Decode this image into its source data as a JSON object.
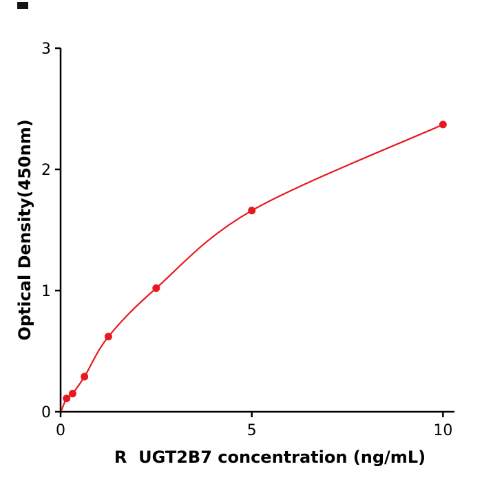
{
  "chart_data": {
    "type": "line",
    "title": "",
    "xlabel": "R  UGT2B7 concentration (ng/mL)",
    "ylabel": "Optical Density(450nm)",
    "x": [
      0.156,
      0.313,
      0.625,
      1.25,
      2.5,
      5,
      10
    ],
    "y": [
      0.11,
      0.15,
      0.29,
      0.62,
      1.02,
      1.66,
      2.37
    ],
    "curve_start": {
      "x": 0.02,
      "y": 0.01
    },
    "xticks": [
      0,
      5,
      10
    ],
    "yticks": [
      0,
      1,
      2,
      3
    ],
    "xlim": [
      0,
      10.3
    ],
    "ylim": [
      0,
      3
    ],
    "line_color": "#e8191d",
    "marker_color": "#e8191d",
    "marker_radius": 5.5,
    "axis_color": "#000000",
    "grid": false,
    "legend_position": "none"
  },
  "decor": {
    "corner_mark_color": "#141414"
  }
}
